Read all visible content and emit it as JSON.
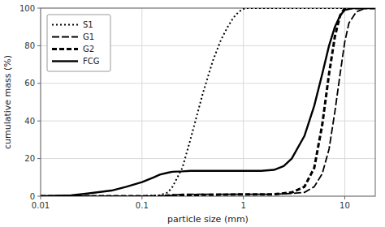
{
  "chart_data": {
    "type": "line",
    "xlabel": "particle size (mm)",
    "ylabel": "cumulative mass (%)",
    "log": "x",
    "xlim": [
      0.01,
      20
    ],
    "ylim": [
      0,
      100
    ],
    "xticks": [
      0.01,
      0.1,
      1,
      10
    ],
    "yticks": [
      0,
      20,
      40,
      60,
      80,
      100
    ],
    "grid": true,
    "legend": "upper left",
    "series": [
      {
        "name": "S1",
        "color": "#000000",
        "line_style": "dotted",
        "x": [
          0.01,
          0.1,
          0.15,
          0.18,
          0.2,
          0.25,
          0.3,
          0.4,
          0.5,
          0.6,
          0.7,
          0.8,
          0.9,
          1.0,
          1.05,
          1.1,
          5.0,
          20.0
        ],
        "values": [
          0,
          0,
          0.5,
          2,
          5,
          15,
          30,
          55,
          72,
          83,
          90,
          95,
          98,
          99.5,
          100,
          100,
          100,
          100
        ]
      },
      {
        "name": "G1",
        "color": "#000000",
        "line_style": "dashed",
        "x": [
          0.01,
          0.15,
          0.2,
          0.25,
          1.0,
          2.0,
          3.0,
          4.0,
          5.0,
          6.0,
          7.0,
          8.0,
          9.0,
          10.0,
          11.0,
          13.0,
          16.0,
          20.0
        ],
        "values": [
          0,
          0,
          0.5,
          1,
          1,
          1,
          1.5,
          2,
          5,
          12,
          25,
          45,
          65,
          82,
          92,
          98,
          100,
          100
        ]
      },
      {
        "name": "G2",
        "color": "#000000",
        "line_style": "dashed",
        "x": [
          0.01,
          0.15,
          0.2,
          1.0,
          2.0,
          3.0,
          4.0,
          5.0,
          6.0,
          7.0,
          8.0,
          9.0,
          10.0,
          20.0
        ],
        "values": [
          0,
          0,
          0.5,
          1,
          1,
          2,
          5,
          15,
          38,
          65,
          85,
          96,
          100,
          100
        ]
      },
      {
        "name": "FCG",
        "color": "#000000",
        "line_style": "solid",
        "x": [
          0.01,
          0.02,
          0.03,
          0.05,
          0.07,
          0.1,
          0.13,
          0.15,
          0.18,
          0.2,
          0.25,
          0.3,
          0.5,
          0.8,
          1.0,
          1.2,
          1.5,
          2.0,
          2.5,
          3.0,
          4.0,
          5.0,
          6.0,
          7.0,
          8.0,
          9.0,
          10.0,
          12.0,
          20.0
        ],
        "values": [
          0,
          0.5,
          1.5,
          3,
          5,
          7.5,
          10,
          11.5,
          12.5,
          13,
          13.2,
          13.5,
          13.5,
          13.5,
          13.5,
          13.5,
          13.5,
          14,
          16,
          20,
          32,
          48,
          65,
          80,
          90,
          96,
          99,
          100,
          100
        ]
      }
    ]
  }
}
